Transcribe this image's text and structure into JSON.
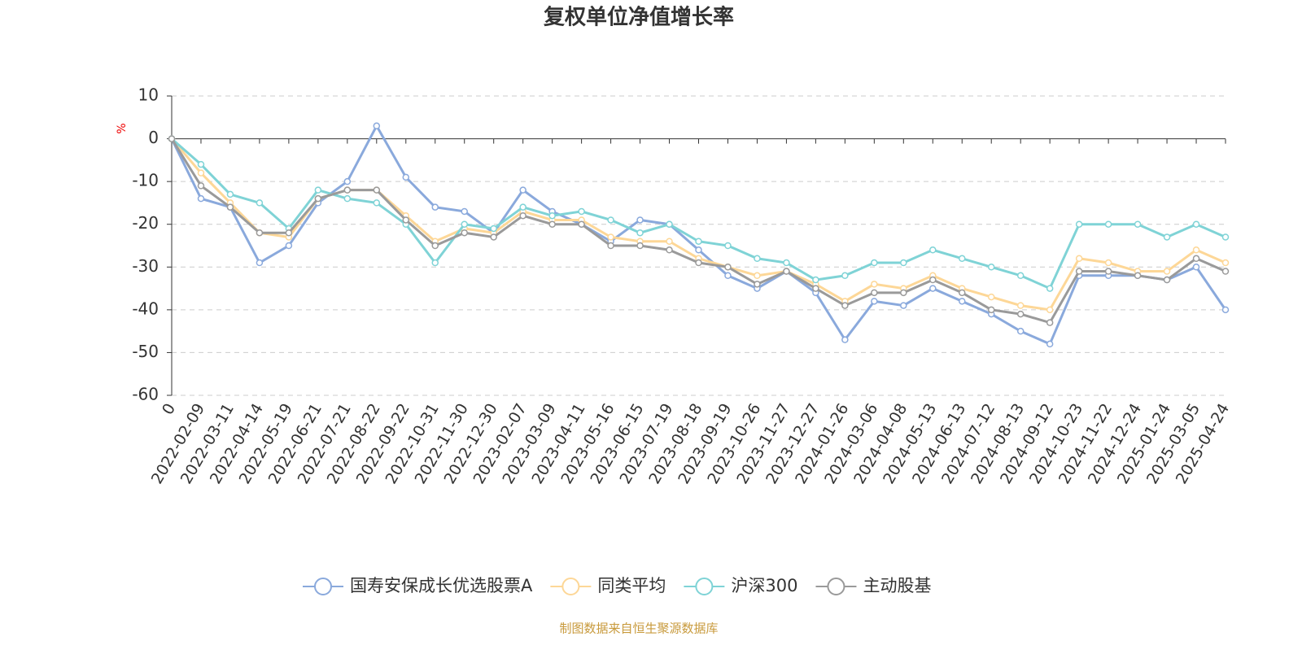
{
  "chart_data": {
    "type": "line",
    "title": "复权单位净值增长率",
    "y_label": "%",
    "source": "制图数据来自恒生聚源数据库",
    "categories": [
      "0",
      "2022-02-09",
      "2022-03-11",
      "2022-04-14",
      "2022-05-19",
      "2022-06-21",
      "2022-07-21",
      "2022-08-22",
      "2022-09-22",
      "2022-10-31",
      "2022-11-30",
      "2022-12-30",
      "2023-02-07",
      "2023-03-09",
      "2023-04-11",
      "2023-05-16",
      "2023-06-15",
      "2023-07-19",
      "2023-08-18",
      "2023-09-19",
      "2023-10-26",
      "2023-11-27",
      "2023-12-27",
      "2024-01-26",
      "2024-03-06",
      "2024-04-08",
      "2024-05-13",
      "2024-06-13",
      "2024-07-12",
      "2024-08-13",
      "2024-09-12",
      "2024-10-23",
      "2024-11-22",
      "2024-12-24",
      "2025-01-24",
      "2025-03-05",
      "2025-04-24"
    ],
    "series": [
      {
        "name": "国寿安保成长优选股票A",
        "color": "#8aa9dc",
        "values": [
          0,
          -14,
          -16,
          -29,
          -25,
          -15,
          -10,
          3,
          -9,
          -16,
          -17,
          -22,
          -12,
          -17,
          -20,
          -24,
          -19,
          -20,
          -26,
          -32,
          -35,
          -31,
          -36,
          -47,
          -38,
          -39,
          -35,
          -38,
          -41,
          -45,
          -48,
          -32,
          -32,
          -32,
          -33,
          -30,
          -40
        ]
      },
      {
        "name": "同类平均",
        "color": "#fdd797",
        "values": [
          0,
          -8,
          -15,
          -22,
          -23,
          -14,
          -12,
          -12,
          -18,
          -24,
          -21,
          -22,
          -17,
          -19,
          -19,
          -23,
          -24,
          -24,
          -28,
          -30,
          -32,
          -31,
          -34,
          -38,
          -34,
          -35,
          -32,
          -35,
          -37,
          -39,
          -40,
          -28,
          -29,
          -31,
          -31,
          -26,
          -29
        ]
      },
      {
        "name": "沪深300",
        "color": "#7fd3d6",
        "values": [
          0,
          -6,
          -13,
          -15,
          -21,
          -12,
          -14,
          -15,
          -20,
          -29,
          -20,
          -21,
          -16,
          -18,
          -17,
          -19,
          -22,
          -20,
          -24,
          -25,
          -28,
          -29,
          -33,
          -32,
          -29,
          -29,
          -26,
          -28,
          -30,
          -32,
          -35,
          -20,
          -20,
          -20,
          -23,
          -20,
          -23
        ]
      },
      {
        "name": "主动股基",
        "color": "#9a9a9a",
        "values": [
          0,
          -11,
          -16,
          -22,
          -22,
          -14,
          -12,
          -12,
          -19,
          -25,
          -22,
          -23,
          -18,
          -20,
          -20,
          -25,
          -25,
          -26,
          -29,
          -30,
          -34,
          -31,
          -35,
          -39,
          -36,
          -36,
          -33,
          -36,
          -40,
          -41,
          -43,
          -31,
          -31,
          -32,
          -33,
          -28,
          -31
        ]
      }
    ],
    "ylim": [
      -60,
      10
    ],
    "yticks": [
      10,
      0,
      -10,
      -20,
      -30,
      -40,
      -50,
      -60
    ],
    "grid": true
  }
}
